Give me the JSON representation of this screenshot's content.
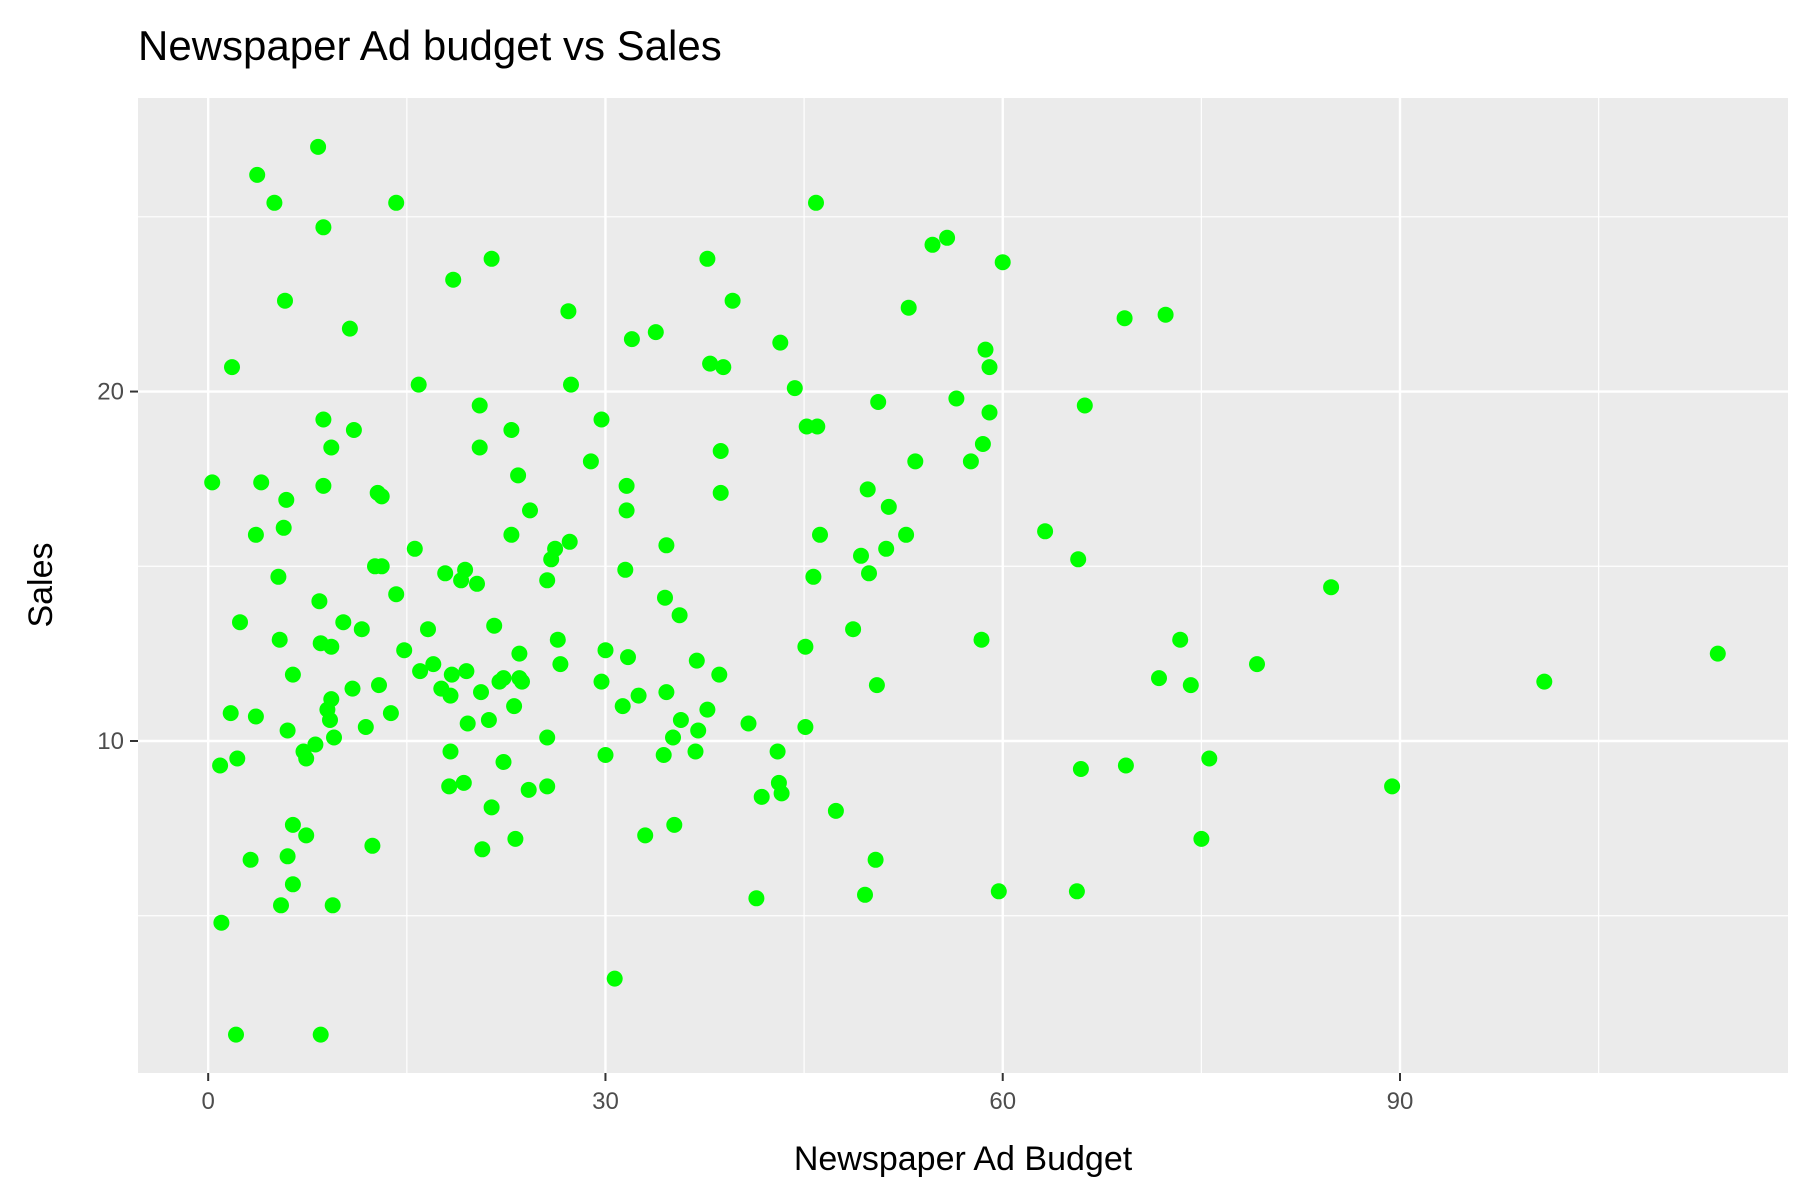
{
  "chart_data": {
    "type": "scatter",
    "title": "Newspaper Ad budget vs Sales",
    "xlabel": "Newspaper Ad Budget",
    "ylabel": "Sales",
    "xlim": [
      -5.3,
      119.3
    ],
    "ylim": [
      0.5,
      28.4
    ],
    "x_ticks": [
      0,
      30,
      60,
      90
    ],
    "y_ticks": [
      10,
      20
    ],
    "grid": true,
    "legend": "none",
    "point_color": "#00ff00",
    "panel_color": "#ebebeb",
    "points": [
      [
        69.2,
        22.1
      ],
      [
        45.1,
        10.4
      ],
      [
        69.3,
        9.3
      ],
      [
        58.5,
        18.5
      ],
      [
        58.4,
        12.9
      ],
      [
        75.0,
        7.2
      ],
      [
        23.5,
        11.8
      ],
      [
        11.6,
        13.2
      ],
      [
        1.0,
        4.8
      ],
      [
        21.2,
        10.6
      ],
      [
        24.2,
        8.6
      ],
      [
        4.0,
        17.4
      ],
      [
        65.9,
        9.2
      ],
      [
        7.2,
        9.7
      ],
      [
        46.0,
        19.0
      ],
      [
        52.9,
        22.4
      ],
      [
        114.0,
        12.5
      ],
      [
        55.8,
        24.4
      ],
      [
        18.3,
        11.3
      ],
      [
        19.1,
        14.6
      ],
      [
        53.4,
        18.0
      ],
      [
        23.5,
        12.5
      ],
      [
        49.6,
        5.6
      ],
      [
        26.2,
        15.5
      ],
      [
        18.3,
        9.7
      ],
      [
        19.5,
        12.0
      ],
      [
        12.6,
        15.0
      ],
      [
        22.9,
        15.9
      ],
      [
        22.9,
        18.9
      ],
      [
        40.8,
        10.5
      ],
      [
        43.2,
        21.4
      ],
      [
        38.6,
        11.9
      ],
      [
        30.0,
        9.6
      ],
      [
        0.3,
        17.4
      ],
      [
        7.4,
        9.5
      ],
      [
        8.5,
        12.8
      ],
      [
        5.0,
        25.4
      ],
      [
        45.7,
        14.7
      ],
      [
        35.1,
        10.1
      ],
      [
        32.0,
        21.5
      ],
      [
        31.6,
        16.6
      ],
      [
        38.7,
        17.1
      ],
      [
        1.8,
        20.7
      ],
      [
        26.4,
        12.9
      ],
      [
        43.3,
        8.5
      ],
      [
        31.5,
        14.9
      ],
      [
        35.7,
        10.6
      ],
      [
        18.5,
        23.2
      ],
      [
        49.9,
        14.8
      ],
      [
        36.8,
        9.7
      ],
      [
        34.6,
        11.4
      ],
      [
        3.6,
        10.7
      ],
      [
        39.6,
        22.6
      ],
      [
        58.7,
        21.2
      ],
      [
        15.9,
        20.2
      ],
      [
        60.0,
        23.7
      ],
      [
        41.4,
        5.5
      ],
      [
        16.6,
        13.2
      ],
      [
        37.7,
        23.8
      ],
      [
        9.3,
        18.4
      ],
      [
        21.4,
        8.1
      ],
      [
        54.7,
        24.2
      ],
      [
        27.3,
        15.7
      ],
      [
        8.4,
        14.0
      ],
      [
        28.9,
        18.0
      ],
      [
        0.9,
        9.3
      ],
      [
        2.2,
        9.5
      ],
      [
        10.2,
        13.4
      ],
      [
        11.0,
        18.9
      ],
      [
        27.2,
        22.3
      ],
      [
        38.7,
        18.3
      ],
      [
        31.7,
        12.4
      ],
      [
        19.3,
        8.8
      ],
      [
        31.3,
        11.0
      ],
      [
        13.1,
        17.0
      ],
      [
        89.4,
        8.7
      ],
      [
        20.7,
        6.9
      ],
      [
        14.2,
        14.2
      ],
      [
        9.4,
        5.3
      ],
      [
        23.1,
        11.0
      ],
      [
        22.3,
        11.8
      ],
      [
        36.9,
        12.3
      ],
      [
        32.5,
        11.3
      ],
      [
        35.6,
        13.6
      ],
      [
        33.8,
        21.7
      ],
      [
        65.7,
        15.2
      ],
      [
        16.0,
        12.0
      ],
      [
        63.2,
        16.0
      ],
      [
        73.4,
        12.9
      ],
      [
        51.4,
        16.7
      ],
      [
        9.3,
        11.2
      ],
      [
        33.0,
        7.3
      ],
      [
        59.0,
        19.4
      ],
      [
        72.3,
        22.2
      ],
      [
        10.9,
        11.5
      ],
      [
        5.9,
        16.9
      ],
      [
        22.0,
        11.7
      ],
      [
        51.2,
        15.5
      ],
      [
        45.9,
        25.4
      ],
      [
        49.8,
        17.2
      ],
      [
        100.9,
        11.7
      ],
      [
        21.4,
        23.8
      ],
      [
        17.9,
        14.8
      ],
      [
        5.3,
        14.7
      ],
      [
        59.0,
        20.7
      ],
      [
        29.7,
        19.2
      ],
      [
        23.2,
        7.2
      ],
      [
        25.6,
        8.7
      ],
      [
        5.5,
        5.3
      ],
      [
        56.5,
        19.8
      ],
      [
        2.4,
        13.4
      ],
      [
        10.7,
        21.8
      ],
      [
        34.5,
        14.1
      ],
      [
        52.7,
        15.9
      ],
      [
        25.6,
        14.6
      ],
      [
        14.8,
        12.6
      ],
      [
        79.2,
        12.2
      ],
      [
        22.3,
        9.4
      ],
      [
        46.2,
        15.9
      ],
      [
        50.4,
        6.6
      ],
      [
        15.6,
        15.5
      ],
      [
        12.4,
        7.0
      ],
      [
        74.2,
        11.6
      ],
      [
        25.9,
        15.2
      ],
      [
        50.6,
        19.7
      ],
      [
        9.2,
        10.6
      ],
      [
        3.2,
        6.6
      ],
      [
        43.1,
        8.8
      ],
      [
        8.7,
        24.7
      ],
      [
        43.0,
        9.7
      ],
      [
        2.1,
        1.6
      ],
      [
        45.1,
        12.7
      ],
      [
        65.6,
        5.7
      ],
      [
        8.5,
        1.6
      ],
      [
        9.3,
        12.7
      ],
      [
        59.7,
        5.7
      ],
      [
        20.5,
        19.6
      ],
      [
        1.7,
        10.8
      ],
      [
        12.9,
        11.6
      ],
      [
        75.6,
        9.5
      ],
      [
        37.9,
        20.8
      ],
      [
        34.4,
        9.6
      ],
      [
        38.9,
        20.7
      ],
      [
        9.0,
        10.9
      ],
      [
        8.7,
        19.2
      ],
      [
        44.3,
        20.1
      ],
      [
        11.9,
        10.4
      ],
      [
        20.6,
        11.4
      ],
      [
        37.0,
        10.3
      ],
      [
        48.7,
        13.2
      ],
      [
        14.2,
        25.4
      ],
      [
        37.7,
        10.9
      ],
      [
        9.5,
        10.1
      ],
      [
        5.7,
        16.1
      ],
      [
        50.5,
        11.6
      ],
      [
        24.3,
        16.6
      ],
      [
        45.2,
        19.0
      ],
      [
        34.6,
        15.6
      ],
      [
        30.7,
        3.2
      ],
      [
        49.3,
        15.3
      ],
      [
        25.6,
        10.1
      ],
      [
        7.4,
        7.3
      ],
      [
        5.4,
        12.9
      ],
      [
        84.8,
        14.4
      ],
      [
        21.6,
        13.3
      ],
      [
        19.4,
        14.9
      ],
      [
        57.6,
        18.0
      ],
      [
        6.4,
        11.9
      ],
      [
        18.4,
        11.9
      ],
      [
        47.4,
        8.0
      ],
      [
        17.0,
        12.2
      ],
      [
        12.8,
        17.1
      ],
      [
        13.1,
        15.0
      ],
      [
        41.8,
        8.4
      ],
      [
        20.3,
        14.5
      ],
      [
        35.2,
        7.6
      ],
      [
        23.7,
        11.7
      ],
      [
        17.6,
        11.5
      ],
      [
        8.3,
        27.0
      ],
      [
        27.4,
        20.2
      ],
      [
        29.7,
        11.7
      ],
      [
        71.8,
        11.8
      ],
      [
        30.0,
        12.6
      ],
      [
        19.6,
        10.5
      ],
      [
        26.6,
        12.2
      ],
      [
        18.2,
        8.7
      ],
      [
        3.7,
        26.2
      ],
      [
        23.4,
        17.6
      ],
      [
        5.8,
        22.6
      ],
      [
        6.0,
        10.3
      ],
      [
        31.6,
        17.3
      ],
      [
        3.6,
        15.9
      ],
      [
        6.0,
        6.7
      ],
      [
        13.8,
        10.8
      ],
      [
        8.1,
        9.9
      ],
      [
        6.4,
        5.9
      ],
      [
        66.2,
        19.6
      ],
      [
        8.7,
        17.3
      ],
      [
        6.4,
        7.6
      ],
      [
        20.5,
        18.4
      ]
    ]
  }
}
